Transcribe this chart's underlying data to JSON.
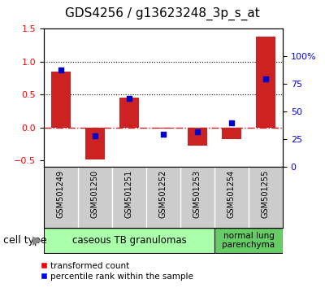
{
  "title": "GDS4256 / g13623248_3p_s_at",
  "samples": [
    "GSM501249",
    "GSM501250",
    "GSM501251",
    "GSM501252",
    "GSM501253",
    "GSM501254",
    "GSM501255"
  ],
  "transformed_count": [
    0.85,
    -0.48,
    0.45,
    -0.02,
    -0.28,
    -0.18,
    1.38
  ],
  "percentile_rank": [
    88,
    28,
    62,
    30,
    32,
    40,
    80
  ],
  "ylim_left": [
    -0.6,
    1.5
  ],
  "ylim_right": [
    0,
    125
  ],
  "yticks_left": [
    -0.5,
    0.0,
    0.5,
    1.0,
    1.5
  ],
  "yticks_right": [
    0,
    25,
    50,
    75,
    100
  ],
  "hlines": [
    0.0,
    0.5,
    1.0
  ],
  "hline_styles": [
    "dashdot",
    "dotted",
    "dotted"
  ],
  "hline_colors": [
    "#cc2222",
    "#000000",
    "#000000"
  ],
  "bar_color": "#cc2222",
  "scatter_color": "#0000cc",
  "group1_samples": [
    0,
    1,
    2,
    3,
    4
  ],
  "group2_samples": [
    5,
    6
  ],
  "group1_label": "caseous TB granulomas",
  "group2_label": "normal lung\nparenchyma",
  "group1_color": "#aaffaa",
  "group2_color": "#66cc66",
  "cell_type_label": "cell type",
  "legend_bar_label": "transformed count",
  "legend_scatter_label": "percentile rank within the sample",
  "title_fontsize": 11,
  "tick_fontsize": 8,
  "sample_fontsize": 7,
  "bar_width": 0.55
}
